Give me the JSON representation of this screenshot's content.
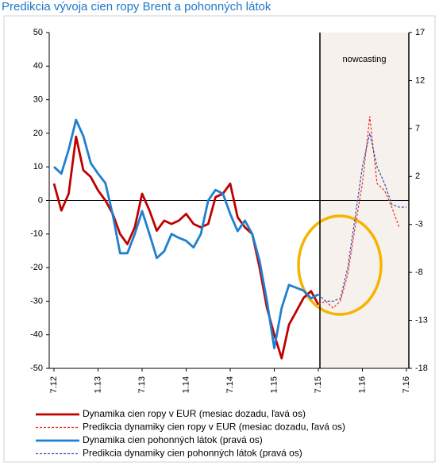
{
  "chart_data": {
    "type": "line",
    "title": "Predikcia vývoja cien ropy Brent a pohonných látok",
    "annotation": "nowcasting",
    "categories": [
      "7.12",
      null,
      null,
      null,
      null,
      null,
      "1.13",
      null,
      null,
      null,
      null,
      null,
      "7.13",
      null,
      null,
      null,
      null,
      null,
      "1.14",
      null,
      null,
      null,
      null,
      null,
      "7.14",
      null,
      null,
      null,
      null,
      null,
      "1.15",
      null,
      null,
      null,
      null,
      null,
      "7.15",
      null,
      null,
      null,
      null,
      null,
      "1.16",
      null,
      null,
      null,
      null,
      null,
      "7.16"
    ],
    "ylim": [
      -50,
      50
    ],
    "yticks": [
      50,
      40,
      30,
      20,
      10,
      0,
      -10,
      -20,
      -30,
      -40,
      -50
    ],
    "y2lim": [
      -18,
      17
    ],
    "y2ticks": [
      17,
      12,
      7,
      2,
      -3,
      -8,
      -13,
      -18
    ],
    "series": [
      {
        "name": "Dynamika cien ropy v EUR (mesiac dozadu, ľavá os)",
        "color": "#c00000",
        "dash": false,
        "values": [
          5,
          -3,
          2,
          19,
          9,
          7,
          3,
          0,
          -4,
          -10,
          -13,
          -8,
          2,
          -3,
          -9,
          -6,
          -7,
          -6,
          -4,
          -7,
          -8,
          -7,
          1,
          2,
          5,
          -5,
          -8,
          -10,
          -20,
          -32,
          -40,
          -47,
          -37,
          -33,
          -29,
          -27,
          -31,
          null,
          null,
          null,
          null,
          null,
          null,
          null,
          null,
          null,
          null,
          null,
          null
        ]
      },
      {
        "name": "Predikcia dynamiky cien ropy v EUR (mesiac dozadu, ľavá os)",
        "color": "#e8302a",
        "dash": true,
        "values": [
          null,
          null,
          null,
          null,
          null,
          null,
          null,
          null,
          null,
          null,
          null,
          null,
          null,
          null,
          null,
          null,
          null,
          null,
          null,
          null,
          null,
          null,
          null,
          null,
          null,
          null,
          null,
          null,
          null,
          null,
          null,
          null,
          null,
          null,
          null,
          null,
          -31,
          -30,
          -32,
          -30,
          -22,
          -8,
          5,
          25,
          5,
          3,
          -2,
          -8,
          null
        ]
      },
      {
        "name": "Dynamika cien pohonných látok (pravá os)",
        "color": "#1f7fd0",
        "dash": false,
        "axis": "y2",
        "values": [
          3,
          2.3,
          4.8,
          7.9,
          6.2,
          3.4,
          2.3,
          1.3,
          -2,
          -6,
          -6,
          -4,
          -1.6,
          -4,
          -6.5,
          -5.8,
          -4,
          -4.4,
          -4.7,
          -5.4,
          -4,
          -0.5,
          0.6,
          0.2,
          -1.9,
          -3.7,
          -2.6,
          -4,
          -6.8,
          -11,
          -15.9,
          -11.7,
          -9.3,
          -9.6,
          -9.9,
          -10.7,
          -10.3,
          null,
          null,
          null,
          null,
          null,
          null,
          null,
          null,
          null,
          null,
          null,
          null
        ]
      },
      {
        "name": "Predikcia dynamiky cien pohonných látok (pravá os)",
        "color": "#2f4fa8",
        "dash": true,
        "axis": "y2",
        "values": [
          null,
          null,
          null,
          null,
          null,
          null,
          null,
          null,
          null,
          null,
          null,
          null,
          null,
          null,
          null,
          null,
          null,
          null,
          null,
          null,
          null,
          null,
          null,
          null,
          null,
          null,
          null,
          null,
          null,
          null,
          null,
          null,
          null,
          null,
          null,
          null,
          -10.3,
          -11,
          -11,
          -10.7,
          -7.5,
          -2.3,
          3,
          6.5,
          3,
          1.3,
          -0.9,
          -1.2,
          -1.2
        ]
      }
    ]
  }
}
